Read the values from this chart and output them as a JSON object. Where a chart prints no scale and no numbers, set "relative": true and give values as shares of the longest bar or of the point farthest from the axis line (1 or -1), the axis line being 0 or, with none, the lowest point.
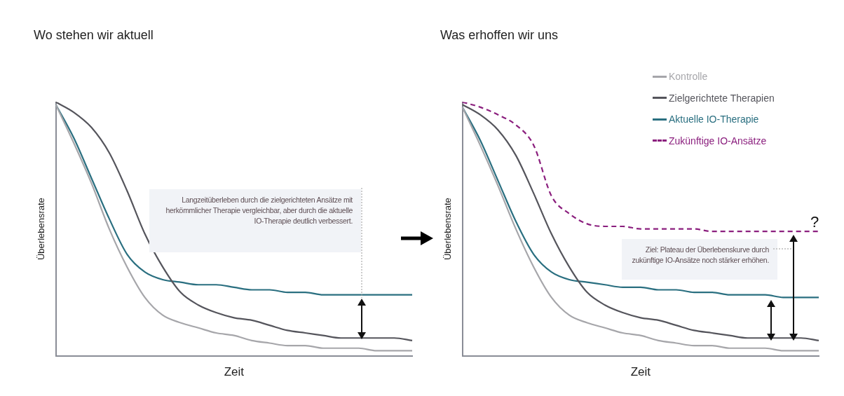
{
  "chart_data": [
    {
      "type": "line",
      "title": "Wo stehen wir aktuell",
      "xlabel": "Zeit",
      "ylabel": "Überlebensrate",
      "relative": true,
      "tick_labels": false,
      "legend": false,
      "categories": [
        null,
        null,
        null,
        null,
        null,
        null,
        null,
        null,
        null,
        null,
        null,
        null,
        null,
        null,
        null,
        null,
        null,
        null,
        null,
        null,
        null
      ],
      "series": [
        {
          "color": "#a6a6aa",
          "values": [
            0.99,
            0.84,
            0.68,
            0.5,
            0.35,
            0.23,
            0.16,
            0.13,
            0.11,
            0.09,
            0.08,
            0.06,
            0.05,
            0.04,
            0.04,
            0.03,
            0.03,
            0.03,
            0.02,
            0.02,
            0.02
          ]
        },
        {
          "color": "#55555c",
          "values": [
            1.0,
            0.96,
            0.9,
            0.8,
            0.65,
            0.48,
            0.35,
            0.25,
            0.2,
            0.17,
            0.15,
            0.14,
            0.12,
            0.1,
            0.09,
            0.08,
            0.07,
            0.07,
            0.07,
            0.07,
            0.06
          ]
        },
        {
          "color": "#2a6f80",
          "values": [
            0.99,
            0.86,
            0.7,
            0.54,
            0.4,
            0.33,
            0.3,
            0.29,
            0.28,
            0.28,
            0.27,
            0.26,
            0.26,
            0.25,
            0.25,
            0.24,
            0.24,
            0.24,
            0.24,
            0.24,
            0.24
          ]
        }
      ],
      "annotations": [
        "Langzeitüberleben durch die zielgerichteten Ansätze mit herkömmlicher Therapie vergleichbar, aber durch die aktuelle IO-Therapie deutlich verbessert."
      ]
    },
    {
      "type": "line",
      "title": "Was erhoffen wir uns",
      "xlabel": "Zeit",
      "ylabel": "Überlebensrate",
      "relative": true,
      "tick_labels": false,
      "legend": "top right",
      "categories": [
        null,
        null,
        null,
        null,
        null,
        null,
        null,
        null,
        null,
        null,
        null,
        null,
        null,
        null,
        null,
        null,
        null,
        null,
        null,
        null,
        null
      ],
      "series": [
        {
          "name": "Kontrolle",
          "color": "#a6a6aa",
          "values": [
            0.98,
            0.83,
            0.67,
            0.5,
            0.35,
            0.23,
            0.16,
            0.13,
            0.11,
            0.09,
            0.08,
            0.06,
            0.05,
            0.04,
            0.04,
            0.03,
            0.03,
            0.03,
            0.02,
            0.02,
            0.02
          ]
        },
        {
          "name": "Zielgerichtete Therapien",
          "color": "#55555c",
          "values": [
            0.99,
            0.95,
            0.89,
            0.79,
            0.64,
            0.48,
            0.35,
            0.25,
            0.2,
            0.17,
            0.15,
            0.14,
            0.12,
            0.1,
            0.09,
            0.08,
            0.07,
            0.07,
            0.07,
            0.07,
            0.06
          ]
        },
        {
          "name": "Aktuelle IO-Therapie",
          "color": "#2a6f80",
          "values": [
            0.98,
            0.85,
            0.69,
            0.53,
            0.4,
            0.33,
            0.3,
            0.29,
            0.28,
            0.27,
            0.27,
            0.26,
            0.26,
            0.25,
            0.25,
            0.24,
            0.24,
            0.24,
            0.23,
            0.23,
            0.23
          ]
        },
        {
          "name": "Zukünftige IO-Ansätze",
          "color": "#8b1f7e",
          "line_style": "dashed",
          "values": [
            1.0,
            0.98,
            0.95,
            0.91,
            0.83,
            0.63,
            0.56,
            0.52,
            0.51,
            0.51,
            0.5,
            0.5,
            0.5,
            0.5,
            0.49,
            0.49,
            0.49,
            0.49,
            0.49,
            0.49,
            0.49
          ]
        }
      ],
      "annotations": [
        "Ziel: Plateau der Überlebenskurve durch zukünftige IO-Ansätze noch stärker erhöhen.",
        "?"
      ]
    }
  ]
}
